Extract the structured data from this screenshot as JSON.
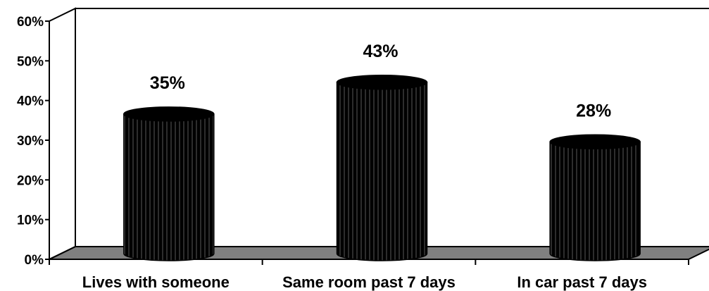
{
  "chart_data": {
    "type": "bar",
    "style": "3d-cylinder",
    "categories": [
      "Lives with someone",
      "Same room past 7 days",
      "In car past 7 days"
    ],
    "values": [
      35,
      43,
      28
    ],
    "value_labels": [
      "35%",
      "43%",
      "28%"
    ],
    "y_ticks": [
      "0%",
      "10%",
      "20%",
      "30%",
      "40%",
      "50%",
      "60%"
    ],
    "ylim": [
      0,
      60
    ],
    "grid": false,
    "legend": "none",
    "colors": {
      "bar": "#000000",
      "bar_stripe": "#5a5a5a",
      "floor": "#808080",
      "axis": "#000000",
      "background": "#ffffff"
    }
  }
}
